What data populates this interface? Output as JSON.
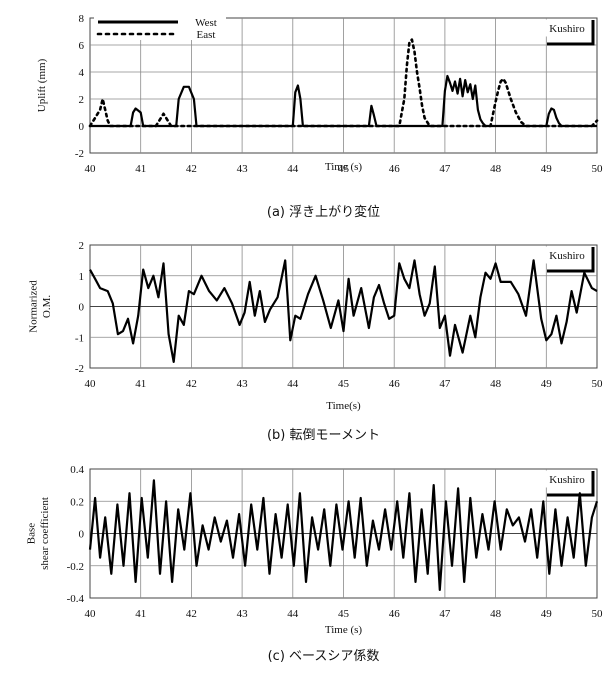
{
  "chart_data": [
    {
      "type": "line",
      "id": "uplift",
      "caption": "(a) 浮き上がり変位",
      "xlabel": "Time (s)",
      "ylabel": "Uplift (mm)",
      "xlim": [
        40,
        50
      ],
      "ylim": [
        -2,
        8
      ],
      "xticks": [
        40,
        41,
        42,
        43,
        44,
        45,
        46,
        47,
        48,
        49,
        50
      ],
      "yticks": [
        -2,
        0,
        2,
        4,
        6,
        8
      ],
      "grid": true,
      "legend": "top-left",
      "badge": "Kushiro",
      "series": [
        {
          "name": "West",
          "style": "solid",
          "x": [
            40.0,
            40.8,
            40.85,
            40.9,
            41.0,
            41.05,
            41.7,
            41.75,
            41.85,
            41.95,
            42.05,
            42.1,
            44.0,
            44.05,
            44.1,
            44.15,
            44.2,
            45.5,
            45.55,
            45.6,
            45.65,
            46.95,
            47.0,
            47.05,
            47.1,
            47.15,
            47.2,
            47.25,
            47.3,
            47.35,
            47.4,
            47.45,
            47.5,
            47.55,
            47.6,
            47.65,
            47.7,
            47.75,
            47.8,
            49.0,
            49.05,
            49.1,
            49.15,
            49.2,
            49.25,
            49.3,
            50.0
          ],
          "y": [
            0,
            0,
            1.0,
            1.3,
            1.0,
            0,
            0,
            2.0,
            2.9,
            2.9,
            2.0,
            0,
            0,
            2.5,
            3.0,
            2.0,
            0,
            0,
            1.5,
            0.8,
            0,
            0,
            2.6,
            3.7,
            3.2,
            2.6,
            3.3,
            2.4,
            3.5,
            2.2,
            3.4,
            2.5,
            3.1,
            2.0,
            3.0,
            1.2,
            0.5,
            0.2,
            0,
            0,
            0.9,
            1.3,
            1.2,
            0.6,
            0.2,
            0,
            0
          ]
        },
        {
          "name": "East",
          "style": "dotted",
          "x": [
            40.0,
            40.1,
            40.2,
            40.25,
            40.3,
            40.35,
            40.4,
            41.3,
            41.4,
            41.45,
            41.5,
            41.6,
            46.1,
            46.2,
            46.25,
            46.3,
            46.35,
            46.4,
            46.45,
            46.5,
            46.55,
            46.6,
            46.7,
            47.9,
            48.0,
            48.05,
            48.1,
            48.15,
            48.2,
            48.3,
            48.4,
            48.5,
            48.6,
            49.9,
            50.0
          ],
          "y": [
            0,
            0.6,
            1.2,
            2.0,
            1.2,
            0.4,
            0,
            0,
            0.6,
            0.9,
            0.6,
            0,
            0,
            2.0,
            4.5,
            6.2,
            6.4,
            5.5,
            4.0,
            2.8,
            1.5,
            0.6,
            0,
            0,
            1.8,
            2.6,
            3.3,
            3.5,
            3.2,
            2.0,
            1.0,
            0.3,
            0,
            0,
            0.4
          ]
        }
      ]
    },
    {
      "type": "line",
      "id": "moment",
      "caption": "(b) 転倒モーメント",
      "xlabel": "Time(s)",
      "ylabel": "Normarized O.M.",
      "xlim": [
        40,
        50
      ],
      "ylim": [
        -2,
        2
      ],
      "xticks": [
        40,
        41,
        42,
        43,
        44,
        45,
        46,
        47,
        48,
        49,
        50
      ],
      "yticks": [
        -2,
        -1,
        0,
        1,
        2
      ],
      "grid": true,
      "badge": "Kushiro",
      "series": [
        {
          "style": "solid",
          "x": [
            40.0,
            40.1,
            40.2,
            40.35,
            40.45,
            40.55,
            40.65,
            40.75,
            40.85,
            40.95,
            41.05,
            41.15,
            41.25,
            41.35,
            41.45,
            41.55,
            41.65,
            41.75,
            41.85,
            41.95,
            42.05,
            42.2,
            42.35,
            42.5,
            42.65,
            42.8,
            42.95,
            43.05,
            43.15,
            43.25,
            43.35,
            43.45,
            43.55,
            43.7,
            43.85,
            43.95,
            44.05,
            44.15,
            44.3,
            44.45,
            44.6,
            44.75,
            44.9,
            45.0,
            45.1,
            45.2,
            45.35,
            45.5,
            45.6,
            45.7,
            45.8,
            45.9,
            46.0,
            46.1,
            46.2,
            46.3,
            46.4,
            46.5,
            46.6,
            46.7,
            46.8,
            46.9,
            47.0,
            47.1,
            47.2,
            47.35,
            47.5,
            47.6,
            47.7,
            47.8,
            47.9,
            48.0,
            48.1,
            48.2,
            48.3,
            48.45,
            48.6,
            48.75,
            48.9,
            49.0,
            49.1,
            49.2,
            49.3,
            49.4,
            49.5,
            49.6,
            49.75,
            49.9,
            50.0
          ],
          "y": [
            1.2,
            0.9,
            0.6,
            0.5,
            0.1,
            -0.9,
            -0.8,
            -0.4,
            -1.2,
            -0.3,
            1.2,
            0.6,
            1.0,
            0.3,
            1.4,
            -0.9,
            -1.8,
            -0.3,
            -0.6,
            0.5,
            0.4,
            1.0,
            0.5,
            0.2,
            0.6,
            0.1,
            -0.6,
            -0.2,
            0.8,
            -0.3,
            0.5,
            -0.5,
            -0.1,
            0.3,
            1.5,
            -1.1,
            -0.3,
            -0.4,
            0.4,
            1.0,
            0.2,
            -0.7,
            0.2,
            -0.8,
            0.9,
            -0.3,
            0.6,
            -0.7,
            0.3,
            0.7,
            0.1,
            -0.4,
            -0.3,
            1.4,
            0.9,
            0.6,
            1.5,
            0.4,
            -0.3,
            0.1,
            1.3,
            -0.7,
            -0.3,
            -1.6,
            -0.6,
            -1.5,
            -0.3,
            -1.0,
            0.3,
            1.1,
            0.9,
            1.4,
            0.8,
            0.8,
            0.8,
            0.4,
            -0.3,
            1.5,
            -0.4,
            -1.1,
            -0.9,
            -0.3,
            -1.2,
            -0.5,
            0.5,
            -0.2,
            1.1,
            0.6,
            0.5
          ]
        }
      ]
    },
    {
      "type": "line",
      "id": "baseshear",
      "caption": "(c) ベースシア係数",
      "xlabel": "Time (s)",
      "ylabel": "Base shear coefficient",
      "xlim": [
        40,
        50
      ],
      "ylim": [
        -0.4,
        0.4
      ],
      "xticks": [
        40,
        41,
        42,
        43,
        44,
        45,
        46,
        47,
        48,
        49,
        50
      ],
      "yticks": [
        -0.4,
        -0.2,
        0,
        0.2,
        0.4
      ],
      "grid": true,
      "badge": "Kushiro",
      "series": [
        {
          "style": "solid",
          "x": [
            40.0,
            40.1,
            40.2,
            40.3,
            40.42,
            40.54,
            40.66,
            40.78,
            40.9,
            41.02,
            41.14,
            41.26,
            41.38,
            41.5,
            41.62,
            41.74,
            41.86,
            41.98,
            42.1,
            42.22,
            42.34,
            42.46,
            42.58,
            42.7,
            42.82,
            42.94,
            43.06,
            43.18,
            43.3,
            43.42,
            43.54,
            43.66,
            43.78,
            43.9,
            44.02,
            44.14,
            44.26,
            44.38,
            44.5,
            44.62,
            44.74,
            44.86,
            44.98,
            45.1,
            45.22,
            45.34,
            45.46,
            45.58,
            45.7,
            45.82,
            45.94,
            46.06,
            46.18,
            46.3,
            46.42,
            46.54,
            46.66,
            46.78,
            46.9,
            47.02,
            47.14,
            47.26,
            47.38,
            47.5,
            47.62,
            47.74,
            47.86,
            47.98,
            48.1,
            48.22,
            48.34,
            48.46,
            48.58,
            48.7,
            48.82,
            48.94,
            49.06,
            49.18,
            49.3,
            49.42,
            49.54,
            49.66,
            49.78,
            49.9,
            50.0
          ],
          "y": [
            -0.1,
            0.22,
            -0.15,
            0.1,
            -0.25,
            0.18,
            -0.2,
            0.25,
            -0.3,
            0.22,
            -0.15,
            0.33,
            -0.25,
            0.2,
            -0.3,
            0.15,
            -0.1,
            0.25,
            -0.2,
            0.05,
            -0.1,
            0.1,
            -0.05,
            0.08,
            -0.15,
            0.12,
            -0.2,
            0.18,
            -0.1,
            0.22,
            -0.25,
            0.12,
            -0.15,
            0.18,
            -0.2,
            0.25,
            -0.3,
            0.1,
            -0.1,
            0.15,
            -0.2,
            0.18,
            -0.1,
            0.2,
            -0.15,
            0.22,
            -0.2,
            0.08,
            -0.1,
            0.15,
            -0.1,
            0.2,
            -0.15,
            0.25,
            -0.3,
            0.15,
            -0.25,
            0.3,
            -0.35,
            0.2,
            -0.2,
            0.28,
            -0.3,
            0.22,
            -0.15,
            0.12,
            -0.1,
            0.2,
            -0.1,
            0.15,
            0.05,
            0.1,
            -0.05,
            0.15,
            -0.15,
            0.2,
            -0.25,
            0.15,
            -0.2,
            0.1,
            -0.15,
            0.25,
            -0.2,
            0.1,
            0.2
          ]
        }
      ]
    }
  ]
}
